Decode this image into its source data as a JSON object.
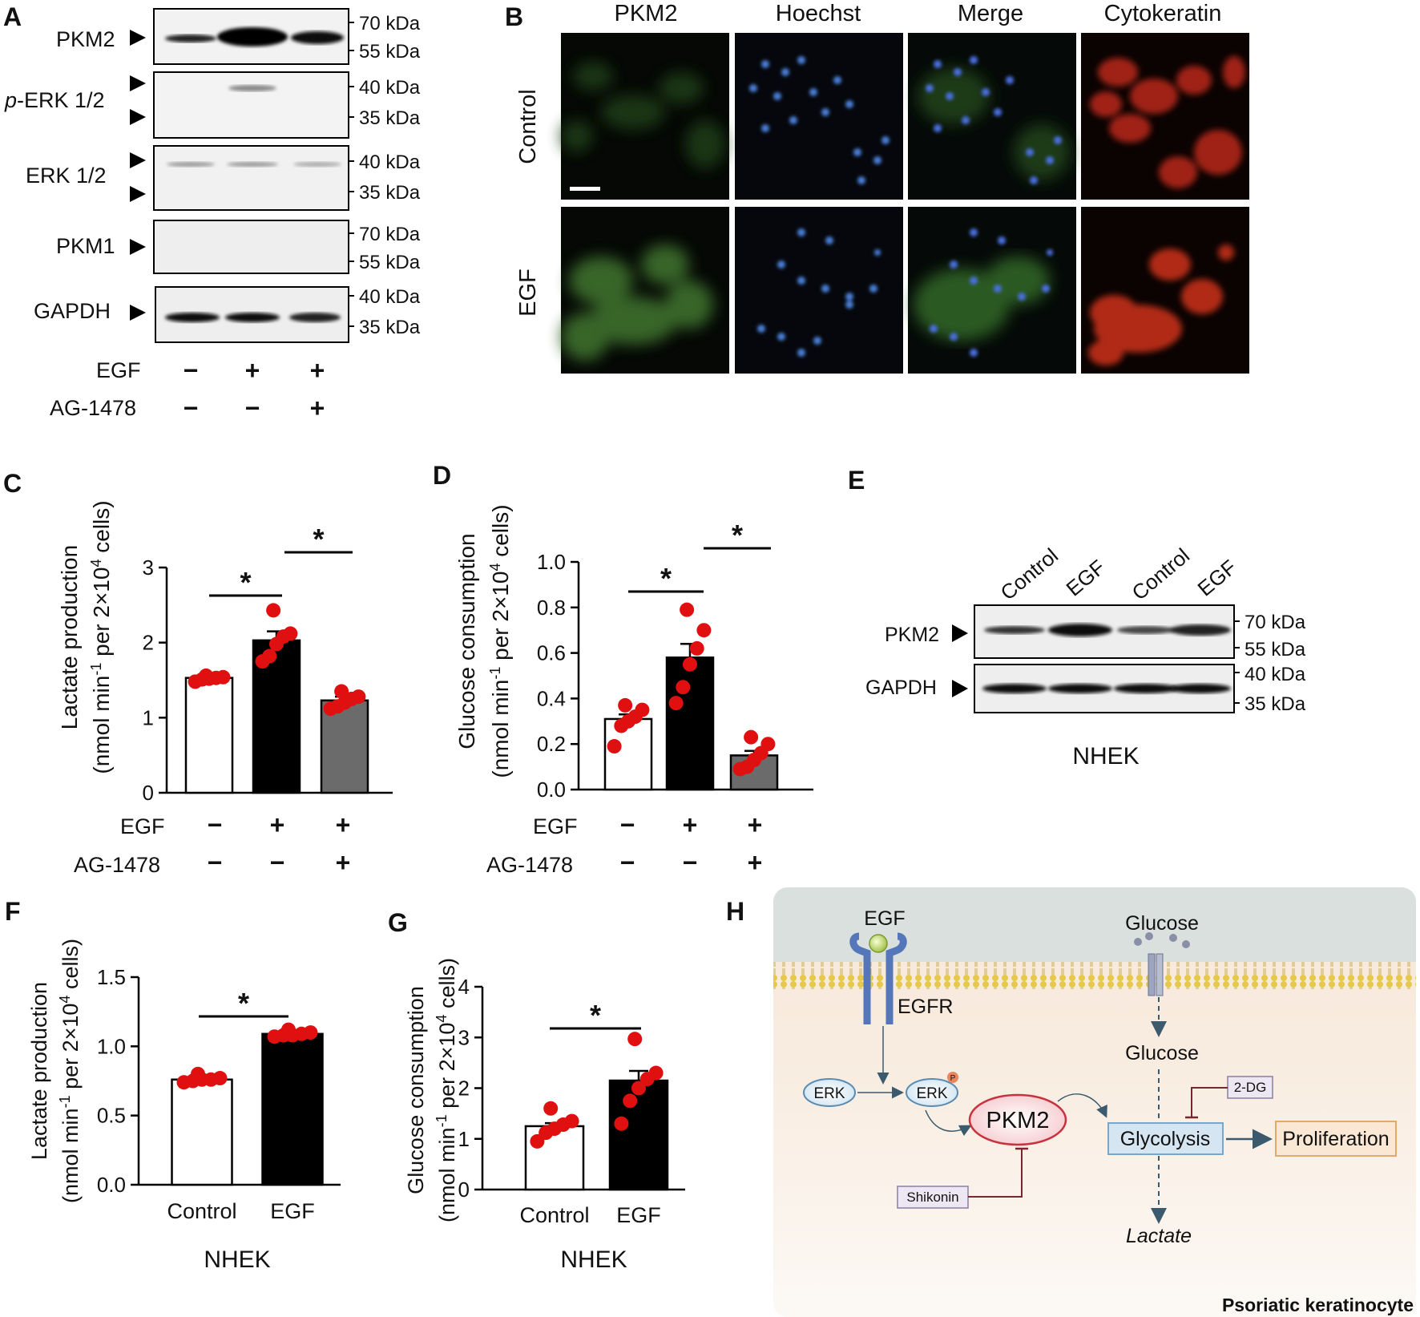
{
  "figure": {
    "panels": [
      "A",
      "B",
      "C",
      "D",
      "E",
      "F",
      "G",
      "H"
    ]
  },
  "panel_a": {
    "blots": [
      {
        "label": "PKM2",
        "markers": [
          "70 kDa",
          "55 kDa"
        ]
      },
      {
        "label_italic": "p",
        "label_rest": "-ERK 1/2",
        "markers": [
          "40 kDa",
          "35 kDa"
        ]
      },
      {
        "label": "ERK 1/2",
        "markers": [
          "40 kDa",
          "35 kDa"
        ]
      },
      {
        "label": "PKM1",
        "markers": [
          "70 kDa",
          "55 kDa"
        ]
      },
      {
        "label": "GAPDH",
        "markers": [
          "40 kDa",
          "35 kDa"
        ]
      }
    ],
    "treatments": [
      {
        "name": "EGF",
        "signs": [
          "−",
          "+",
          "+"
        ]
      },
      {
        "name": "AG-1478",
        "signs": [
          "−",
          "−",
          "+"
        ]
      }
    ]
  },
  "panel_b": {
    "columns": [
      "PKM2",
      "Hoechst",
      "Merge",
      "Cytokeratin"
    ],
    "rows": [
      "Control",
      "EGF"
    ]
  },
  "chart_data": [
    {
      "panel": "C",
      "type": "bar",
      "ylabel_line1": "Lactate production",
      "ylabel_line2": "(nmol min-1 per 2×104 cells)",
      "ylim": [
        0,
        3
      ],
      "yticks": [
        "0",
        "1",
        "2",
        "3"
      ],
      "values": [
        1.53,
        2.03,
        1.23
      ],
      "errors": [
        0.03,
        0.12,
        0.05
      ],
      "points": [
        [
          1.48,
          1.51,
          1.52,
          1.53,
          1.54,
          1.56
        ],
        [
          1.75,
          1.82,
          1.98,
          2.08,
          2.12,
          2.43
        ],
        [
          1.12,
          1.15,
          1.2,
          1.25,
          1.28,
          1.35
        ]
      ],
      "bar_colors": [
        "#ffffff",
        "#000000",
        "#6b6b6b"
      ],
      "treatments": [
        {
          "name": "EGF",
          "signs": [
            "−",
            "+",
            "+"
          ]
        },
        {
          "name": "AG-1478",
          "signs": [
            "−",
            "−",
            "+"
          ]
        }
      ],
      "significance": [
        "*",
        "*"
      ]
    },
    {
      "panel": "D",
      "type": "bar",
      "ylabel_line1": "Glucose consumption",
      "ylabel_line2": "(nmol min-1 per 2×104 cells)",
      "ylim": [
        0,
        1
      ],
      "yticks": [
        "0.0",
        "0.2",
        "0.4",
        "0.6",
        "0.8",
        "1.0"
      ],
      "values": [
        0.31,
        0.58,
        0.15
      ],
      "errors": [
        0.02,
        0.06,
        0.02
      ],
      "points": [
        [
          0.19,
          0.28,
          0.3,
          0.32,
          0.35,
          0.37
        ],
        [
          0.38,
          0.45,
          0.55,
          0.62,
          0.7,
          0.79
        ],
        [
          0.09,
          0.1,
          0.13,
          0.16,
          0.2,
          0.23
        ]
      ],
      "bar_colors": [
        "#ffffff",
        "#000000",
        "#6b6b6b"
      ],
      "treatments": [
        {
          "name": "EGF",
          "signs": [
            "−",
            "+",
            "+"
          ]
        },
        {
          "name": "AG-1478",
          "signs": [
            "−",
            "−",
            "+"
          ]
        }
      ],
      "significance": [
        "*",
        "*"
      ]
    },
    {
      "panel": "F",
      "type": "bar",
      "ylabel_line1": "Lactate production",
      "ylabel_line2": "(nmol min-1 per 2×104 cells)",
      "ylim": [
        0,
        1.5
      ],
      "yticks": [
        "0.0",
        "0.5",
        "1.0",
        "1.5"
      ],
      "categories": [
        "Control",
        "EGF"
      ],
      "values": [
        0.76,
        1.09
      ],
      "errors": [
        0.01,
        0.01
      ],
      "points": [
        [
          0.74,
          0.75,
          0.76,
          0.76,
          0.77,
          0.8
        ],
        [
          1.07,
          1.08,
          1.08,
          1.09,
          1.1,
          1.12
        ]
      ],
      "bar_colors": [
        "#ffffff",
        "#000000"
      ],
      "xlabel": "NHEK",
      "significance": [
        "*"
      ]
    },
    {
      "panel": "G",
      "type": "bar",
      "ylabel_line1": "Glucose consumption",
      "ylabel_line2": "(nmol min-1 per 2×104 cells)",
      "ylim": [
        0,
        4
      ],
      "yticks": [
        "0",
        "1",
        "2",
        "3",
        "4"
      ],
      "categories": [
        "Control",
        "EGF"
      ],
      "values": [
        1.25,
        2.15
      ],
      "errors": [
        0.06,
        0.19
      ],
      "points": [
        [
          0.95,
          1.12,
          1.2,
          1.28,
          1.35,
          1.6
        ],
        [
          1.3,
          1.75,
          2.0,
          2.18,
          2.3,
          2.97
        ]
      ],
      "bar_colors": [
        "#ffffff",
        "#000000"
      ],
      "xlabel": "NHEK",
      "significance": [
        "*"
      ]
    }
  ],
  "panel_e": {
    "lanes": [
      "Control",
      "EGF",
      "Control",
      "EGF"
    ],
    "blots": [
      {
        "label": "PKM2",
        "markers": [
          "70 kDa",
          "55 kDa"
        ]
      },
      {
        "label": "GAPDH",
        "markers": [
          "40 kDa",
          "35 kDa"
        ]
      }
    ],
    "caption": "NHEK"
  },
  "panel_h": {
    "egf": "EGF",
    "egfr": "EGFR",
    "glucose_out": "Glucose",
    "glucose_in": "Glucose",
    "erk": "ERK",
    "erk_p": "ERK",
    "phospho": "P",
    "pkm2": "PKM2",
    "glycolysis": "Glycolysis",
    "proliferation": "Proliferation",
    "dg": "2-DG",
    "shikonin": "Shikonin",
    "lactate": "Lactate",
    "cell_label": "Psoriatic keratinocyte"
  }
}
